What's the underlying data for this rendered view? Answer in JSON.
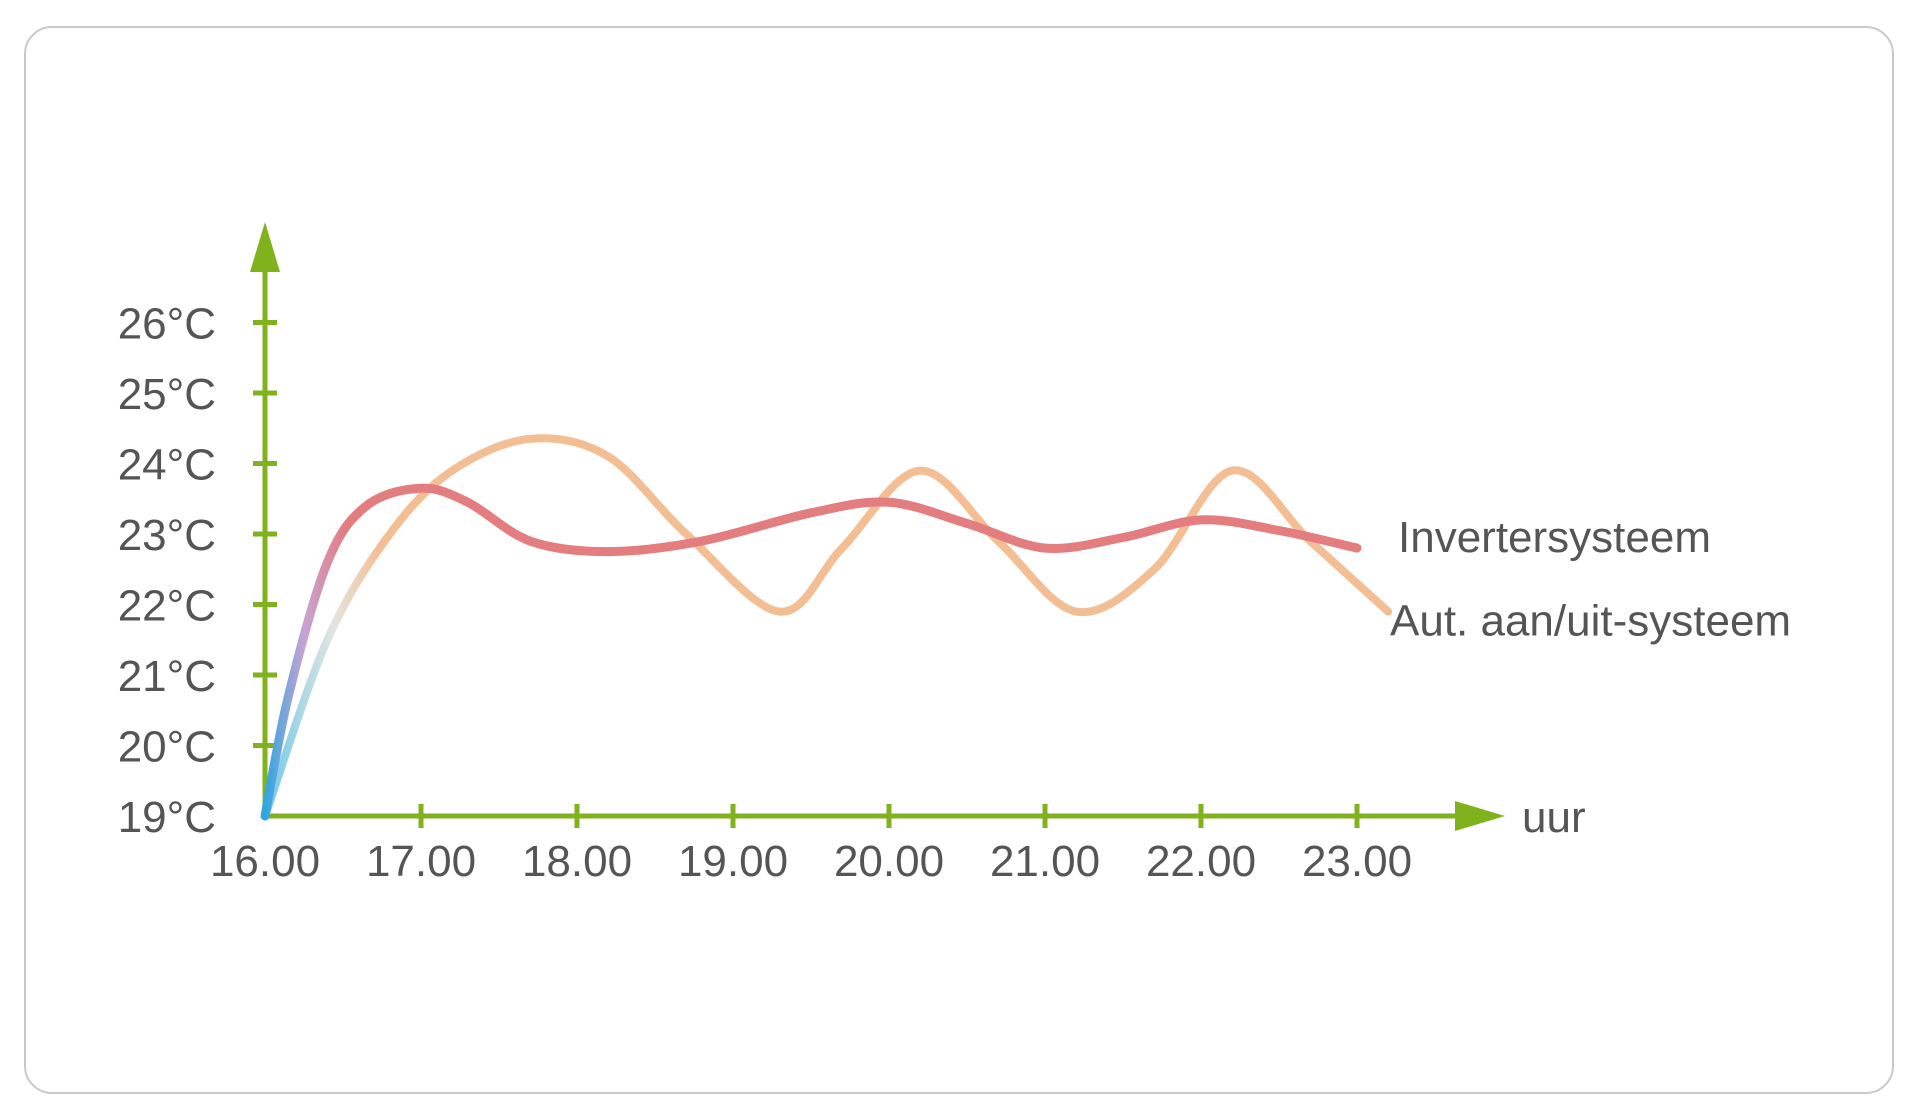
{
  "chart_data": {
    "type": "line",
    "title": "",
    "xlabel": "uur",
    "ylabel": "",
    "x_ticks": [
      "16.00",
      "17.00",
      "18.00",
      "19.00",
      "20.00",
      "21.00",
      "22.00",
      "23.00"
    ],
    "y_ticks": [
      "19°C",
      "20°C",
      "21°C",
      "22°C",
      "23°C",
      "24°C",
      "25°C",
      "26°C"
    ],
    "xlim": [
      16,
      24
    ],
    "ylim": [
      19,
      27
    ],
    "grid": false,
    "legend": "inline labels at right end of lines",
    "axis_color": "#7fb21c",
    "series": [
      {
        "name": "Invertersysteem",
        "color": "#e47d80",
        "start_color": "#2fa7e0",
        "x": [
          16.0,
          16.15,
          16.4,
          16.65,
          17.0,
          17.3,
          17.7,
          18.2,
          18.8,
          19.5,
          20.0,
          20.5,
          21.0,
          21.5,
          22.0,
          22.5,
          23.0
        ],
        "y": [
          19.0,
          20.7,
          22.6,
          23.4,
          23.65,
          23.45,
          22.9,
          22.75,
          22.9,
          23.3,
          23.45,
          23.15,
          22.8,
          22.95,
          23.2,
          23.05,
          22.8
        ]
      },
      {
        "name": "Aut. aan/uit-systeem",
        "color": "#f2b787",
        "start_color": "#5ec3e8",
        "x": [
          16.0,
          16.4,
          16.8,
          17.2,
          17.7,
          18.2,
          18.7,
          19.3,
          19.7,
          20.2,
          20.7,
          21.2,
          21.7,
          22.2,
          22.7,
          23.2
        ],
        "y": [
          19.0,
          21.5,
          23.0,
          23.9,
          24.35,
          24.1,
          23.0,
          21.9,
          22.8,
          23.9,
          22.9,
          21.9,
          22.5,
          23.9,
          22.9,
          21.9
        ]
      }
    ]
  }
}
